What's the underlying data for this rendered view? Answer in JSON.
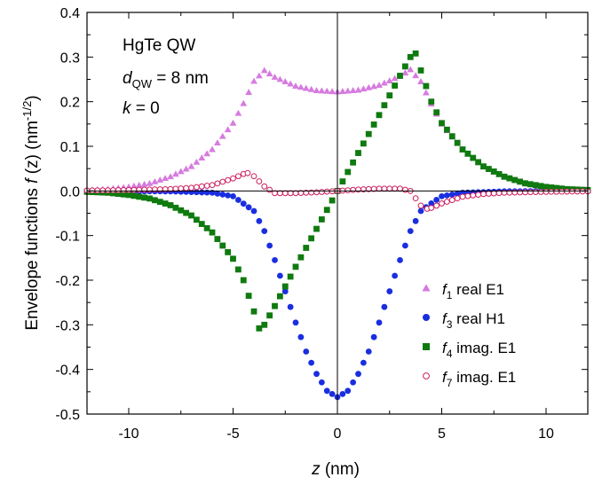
{
  "chart_data": {
    "type": "scatter",
    "xlabel": {
      "var": "z",
      "unit": " (nm)"
    },
    "ylabel": {
      "prefix": "Envelope functions ",
      "var": "f",
      "arg": " (z) (nm",
      "sup": "-1/2",
      "suffix": ")"
    },
    "xlim": [
      -12,
      12
    ],
    "ylim": [
      -0.5,
      0.4
    ],
    "xticks": [
      -10,
      -5,
      0,
      5,
      10
    ],
    "xtick_labels": [
      "-10",
      "-5",
      "0",
      "5",
      "10"
    ],
    "yticks": [
      -0.5,
      -0.4,
      -0.3,
      -0.2,
      -0.1,
      0.0,
      0.1,
      0.2,
      0.3,
      0.4
    ],
    "ytick_labels": [
      "-0.5",
      "-0.4",
      "-0.3",
      "-0.2",
      "-0.1",
      "0.0",
      "0.1",
      "0.2",
      "0.3",
      "0.4"
    ],
    "annotation": {
      "line1": "HgTe QW",
      "line2_var": "d",
      "line2_sub": "QW",
      "line2_rest": " = 8 nm",
      "line3_var": "k",
      "line3_rest": " = 0"
    },
    "legend_position": "bottom-right",
    "series": [
      {
        "var": "f",
        "sub": "1",
        "name": " real E1",
        "marker": "triangle",
        "color": "#d67be0",
        "x": [
          -12.0,
          -11.0,
          -10.0,
          -9.0,
          -8.0,
          -7.0,
          -6.0,
          -5.0,
          -4.5,
          -4.0,
          -3.5,
          -3.0,
          -2.0,
          -1.0,
          0.0,
          1.0,
          2.0,
          3.0,
          3.5,
          4.0,
          4.5,
          5.0,
          6.0,
          7.0,
          8.0,
          9.0,
          10.0,
          11.0,
          12.0
        ],
        "y": [
          0.002,
          0.004,
          0.009,
          0.017,
          0.032,
          0.055,
          0.093,
          0.152,
          0.196,
          0.246,
          0.27,
          0.255,
          0.235,
          0.225,
          0.222,
          0.226,
          0.237,
          0.257,
          0.272,
          0.245,
          0.195,
          0.15,
          0.092,
          0.054,
          0.031,
          0.017,
          0.009,
          0.004,
          0.002
        ]
      },
      {
        "var": "f",
        "sub": "3",
        "name": " real H1",
        "marker": "circle",
        "color": "#1a2ee0",
        "x": [
          -12.0,
          -8.0,
          -6.0,
          -5.0,
          -4.0,
          -3.5,
          -3.0,
          -2.5,
          -2.0,
          -1.5,
          -1.0,
          -0.5,
          0.0,
          0.5,
          1.0,
          1.5,
          2.0,
          2.5,
          3.0,
          3.5,
          4.0,
          4.5,
          5.0,
          6.0,
          8.0,
          12.0
        ],
        "y": [
          0.0,
          -0.001,
          -0.004,
          -0.012,
          -0.045,
          -0.09,
          -0.155,
          -0.225,
          -0.295,
          -0.36,
          -0.41,
          -0.448,
          -0.462,
          -0.448,
          -0.41,
          -0.36,
          -0.295,
          -0.225,
          -0.155,
          -0.09,
          -0.045,
          -0.028,
          -0.012,
          -0.004,
          -0.001,
          0.0
        ]
      },
      {
        "var": "f",
        "sub": "4",
        "name": " imag. E1",
        "marker": "square",
        "color": "#0f7a0f",
        "x": [
          -12.0,
          -11.0,
          -10.0,
          -9.0,
          -8.0,
          -7.0,
          -6.0,
          -5.0,
          -4.5,
          -4.0,
          -3.75,
          -3.5,
          -3.0,
          -2.0,
          -1.0,
          0.0,
          1.0,
          2.0,
          3.0,
          3.5,
          3.75,
          4.0,
          4.5,
          5.0,
          6.0,
          7.0,
          8.0,
          9.0,
          10.0,
          11.0,
          12.0
        ],
        "y": [
          -0.002,
          -0.004,
          -0.009,
          -0.017,
          -0.032,
          -0.055,
          -0.093,
          -0.152,
          -0.2,
          -0.27,
          -0.308,
          -0.3,
          -0.258,
          -0.17,
          -0.085,
          0.0,
          0.085,
          0.17,
          0.258,
          0.3,
          0.308,
          0.27,
          0.2,
          0.152,
          0.093,
          0.055,
          0.032,
          0.017,
          0.009,
          0.004,
          0.002
        ]
      },
      {
        "var": "f",
        "sub": "7",
        "name": " imag. E1",
        "marker": "open-circle",
        "color": "#cc1f5e",
        "x": [
          -12.0,
          -10.0,
          -8.0,
          -7.0,
          -6.0,
          -5.0,
          -4.5,
          -4.3,
          -4.0,
          -3.5,
          -3.0,
          -2.0,
          -1.0,
          0.0,
          1.0,
          2.0,
          3.0,
          3.5,
          4.0,
          4.3,
          4.5,
          5.0,
          6.0,
          7.0,
          8.0,
          10.0,
          12.0
        ],
        "y": [
          0.001,
          0.002,
          0.004,
          0.007,
          0.013,
          0.028,
          0.038,
          0.04,
          0.033,
          0.01,
          -0.005,
          -0.005,
          -0.003,
          0.0,
          0.003,
          0.005,
          0.005,
          0.0,
          -0.033,
          -0.04,
          -0.038,
          -0.028,
          -0.013,
          -0.007,
          -0.004,
          -0.002,
          -0.001
        ]
      }
    ]
  }
}
